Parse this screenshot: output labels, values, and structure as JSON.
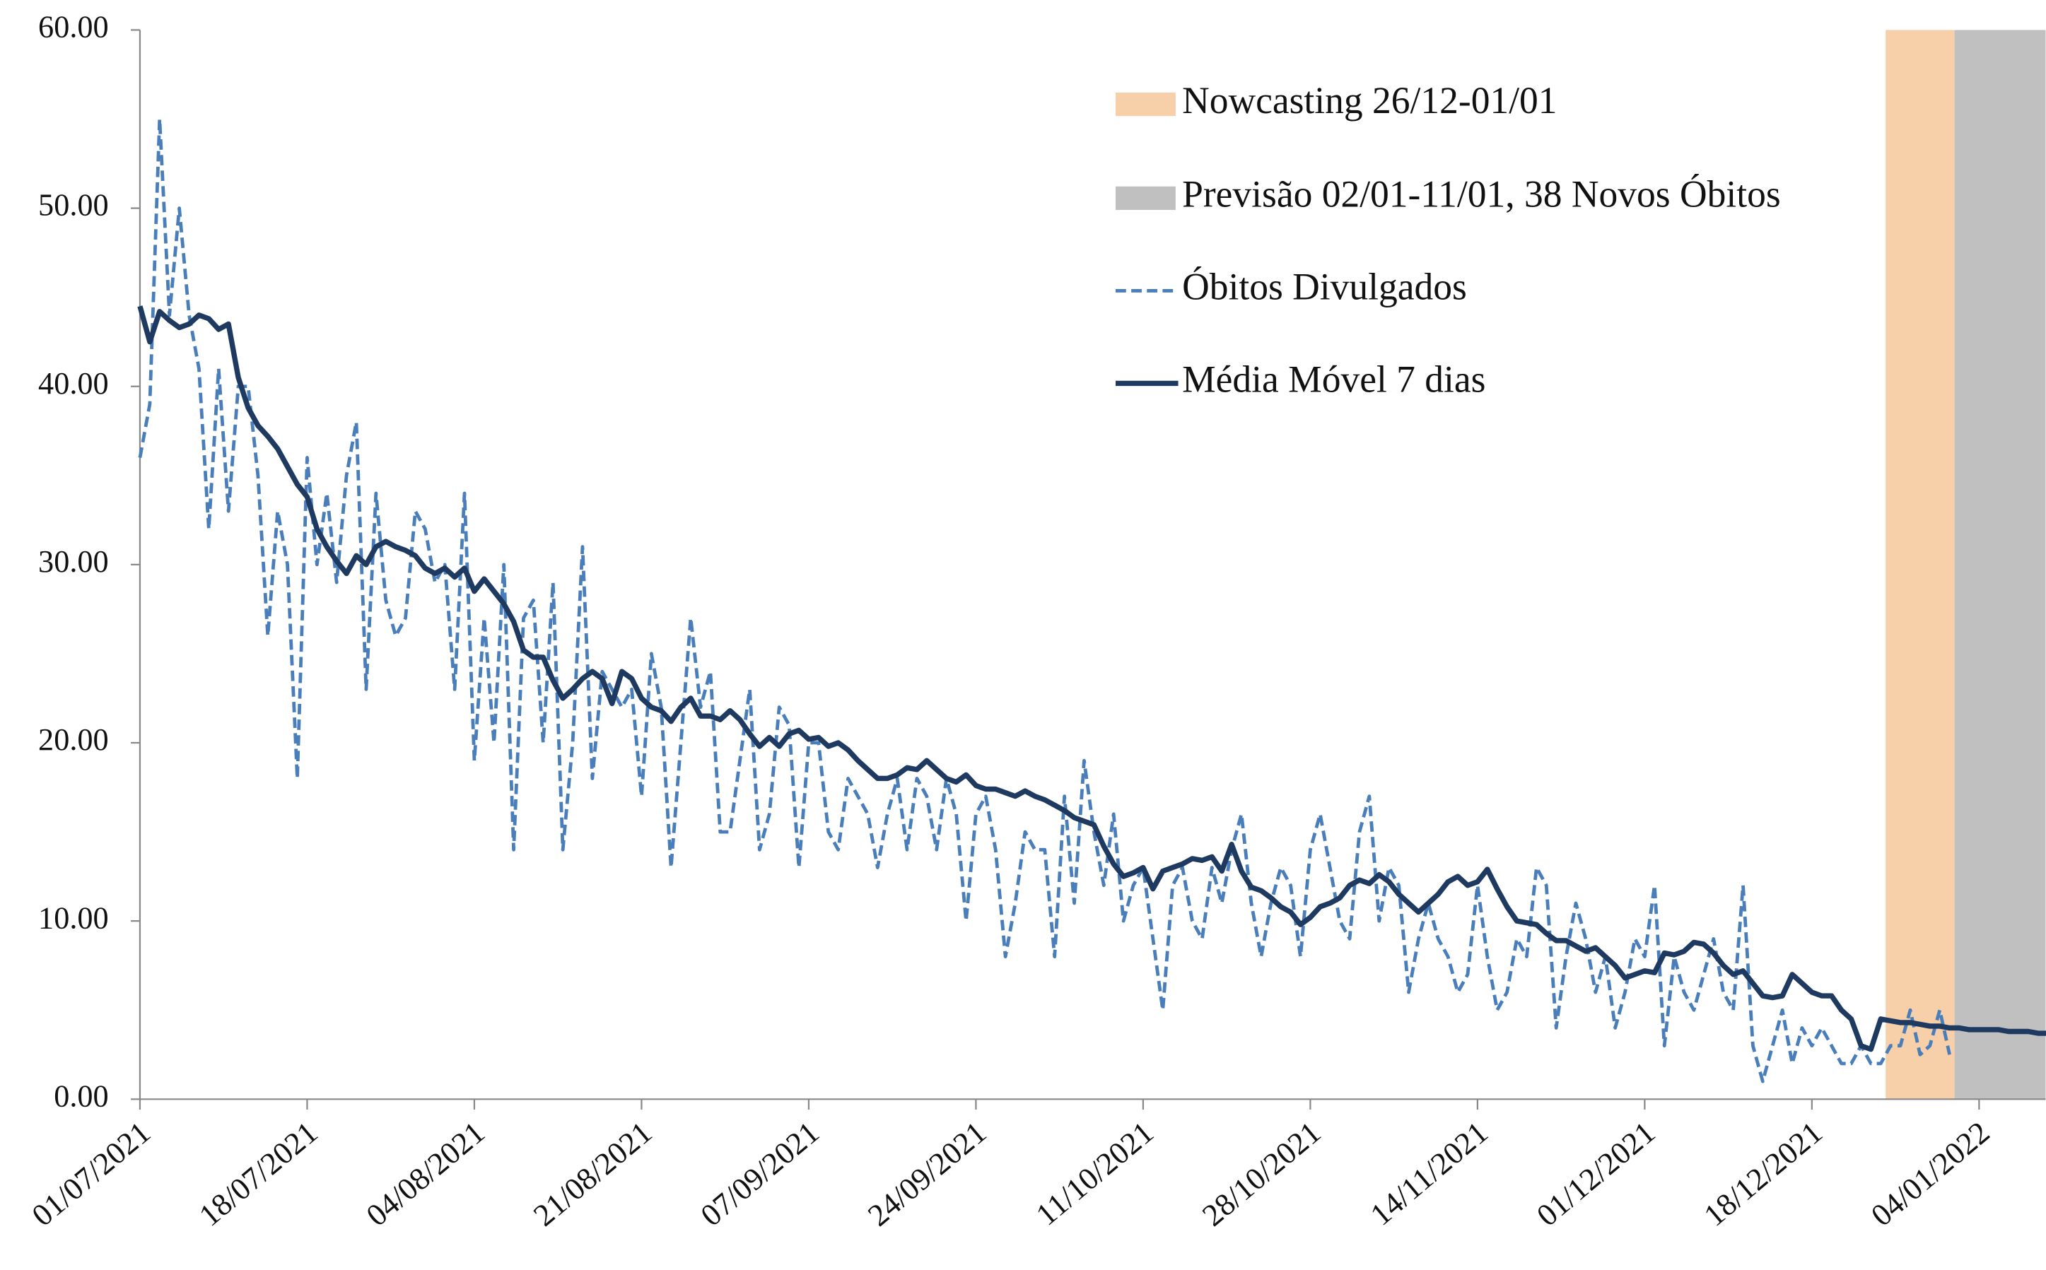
{
  "chart_data": {
    "type": "line",
    "categories": [
      "01/07/2021",
      null,
      null,
      null,
      null,
      null,
      null,
      null,
      null,
      null,
      null,
      null,
      null,
      null,
      null,
      null,
      null,
      "18/07/2021",
      null,
      null,
      null,
      null,
      null,
      null,
      null,
      null,
      null,
      null,
      null,
      null,
      null,
      null,
      null,
      null,
      "04/08/2021",
      null,
      null,
      null,
      null,
      null,
      null,
      null,
      null,
      null,
      null,
      null,
      null,
      null,
      null,
      null,
      null,
      "21/08/2021",
      null,
      null,
      null,
      null,
      null,
      null,
      null,
      null,
      null,
      null,
      null,
      null,
      null,
      null,
      null,
      null,
      "07/09/2021",
      null,
      null,
      null,
      null,
      null,
      null,
      null,
      null,
      null,
      null,
      null,
      null,
      null,
      null,
      null,
      null,
      "24/09/2021",
      null,
      null,
      null,
      null,
      null,
      null,
      null,
      null,
      null,
      null,
      null,
      null,
      null,
      null,
      null,
      null,
      "11/10/2021",
      null,
      null,
      null,
      null,
      null,
      null,
      null,
      null,
      null,
      null,
      null,
      null,
      null,
      null,
      null,
      null,
      "28/10/2021",
      null,
      null,
      null,
      null,
      null,
      null,
      null,
      null,
      null,
      null,
      null,
      null,
      null,
      null,
      null,
      null,
      "14/11/2021",
      null,
      null,
      null,
      null,
      null,
      null,
      null,
      null,
      null,
      null,
      null,
      null,
      null,
      null,
      null,
      null,
      "01/12/2021",
      null,
      null,
      null,
      null,
      null,
      null,
      null,
      null,
      null,
      null,
      null,
      null,
      null,
      null,
      null,
      null,
      "18/12/2021",
      null,
      null,
      null,
      null,
      null,
      null,
      null,
      null,
      null,
      null,
      null,
      null,
      null,
      null,
      null,
      null,
      "04/01/2022",
      null,
      null,
      null,
      null,
      null,
      null,
      null
    ],
    "series": [
      {
        "name": "Óbitos Divulgados",
        "color": "#4a7ebb",
        "dash": true,
        "values": [
          36,
          39,
          55,
          44,
          50,
          44,
          41,
          32,
          41,
          33,
          40,
          40,
          35,
          26,
          33,
          30,
          18,
          36,
          30,
          34,
          29,
          35,
          38,
          23,
          34,
          28,
          26,
          27,
          33,
          32,
          29,
          30,
          23,
          34,
          19,
          27,
          20,
          30,
          14,
          27,
          28,
          20,
          29,
          14,
          20,
          31,
          18,
          24,
          23,
          22,
          23,
          17,
          25,
          22,
          13,
          20,
          27,
          22,
          24,
          15,
          15,
          19,
          23,
          14,
          16,
          22,
          21,
          13,
          20,
          20,
          15,
          14,
          18,
          17,
          16,
          13,
          16,
          18,
          14,
          18,
          17,
          14,
          18,
          16,
          10,
          16,
          17,
          14,
          8,
          11,
          15,
          14,
          14,
          8,
          17,
          11,
          19,
          15,
          12,
          16,
          10,
          12,
          13,
          9,
          5,
          12,
          13,
          10,
          9,
          13,
          11,
          14,
          16,
          11,
          8,
          11,
          13,
          12,
          8,
          14,
          16,
          13,
          10,
          9,
          15,
          17,
          10,
          13,
          12,
          6,
          9,
          11,
          9,
          8,
          6,
          7,
          12,
          8,
          5,
          6,
          9,
          8,
          13,
          12,
          4,
          8,
          11,
          9,
          6,
          8,
          4,
          6,
          9,
          8,
          12,
          3,
          8,
          6,
          5,
          7,
          9,
          6,
          5,
          12,
          3,
          1,
          3,
          5,
          2,
          4,
          3,
          4,
          3,
          2,
          2,
          3,
          2,
          2,
          3,
          3,
          5,
          2.5,
          3,
          5,
          2.5,
          null,
          null,
          null,
          null,
          null,
          null,
          null,
          null,
          null,
          null
        ]
      },
      {
        "name": "Média Móvel 7 dias",
        "color": "#1f3a60",
        "dash": false,
        "values": [
          44.5,
          42.5,
          44.2,
          43.7,
          43.3,
          43.5,
          44,
          43.8,
          43.2,
          43.5,
          40.5,
          38.8,
          37.8,
          37.2,
          36.5,
          35.5,
          34.5,
          33.8,
          32,
          31,
          30.2,
          29.5,
          30.5,
          30,
          31,
          31.3,
          31,
          30.8,
          30.5,
          29.8,
          29.5,
          29.8,
          29.3,
          29.8,
          28.5,
          29.2,
          28.5,
          27.8,
          26.8,
          25.2,
          24.8,
          24.8,
          23.5,
          22.5,
          23,
          23.6,
          24,
          23.6,
          22.2,
          24,
          23.6,
          22.5,
          22,
          21.8,
          21.2,
          22,
          22.5,
          21.5,
          21.5,
          21.3,
          21.8,
          21.3,
          20.5,
          19.8,
          20.3,
          19.8,
          20.5,
          20.7,
          20.2,
          20.3,
          19.8,
          20,
          19.6,
          19,
          18.5,
          18,
          18,
          18.2,
          18.6,
          18.5,
          19,
          18.5,
          18,
          17.8,
          18.2,
          17.6,
          17.4,
          17.4,
          17.2,
          17,
          17.3,
          17,
          16.8,
          16.5,
          16.2,
          15.8,
          15.6,
          15.4,
          14.2,
          13.2,
          12.5,
          12.7,
          13,
          11.8,
          12.8,
          13,
          13.2,
          13.5,
          13.4,
          13.6,
          12.8,
          14.3,
          12.8,
          11.9,
          11.7,
          11.3,
          10.8,
          10.5,
          9.8,
          10.2,
          10.8,
          11,
          11.3,
          12,
          12.3,
          12.1,
          12.6,
          12.2,
          11.5,
          11,
          10.5,
          11,
          11.5,
          12.2,
          12.5,
          12,
          12.2,
          12.9,
          11.8,
          10.8,
          10,
          9.9,
          9.8,
          9.3,
          8.9,
          8.9,
          8.6,
          8.3,
          8.5,
          8,
          7.5,
          6.8,
          7,
          7.2,
          7.1,
          8.2,
          8.1,
          8.3,
          8.8,
          8.7,
          8.2,
          7.5,
          7,
          7.2,
          6.5,
          5.8,
          5.7,
          5.8,
          7,
          6.5,
          6,
          5.8,
          5.8,
          5,
          4.5,
          3,
          2.8,
          4.5,
          4.4,
          4.3,
          4.3,
          4.2,
          4.1,
          4.1,
          4,
          4,
          3.9,
          3.9,
          3.9,
          3.9,
          3.8,
          3.8,
          3.8,
          3.7,
          3.7
        ]
      }
    ],
    "spans": [
      {
        "name": "Nowcasting 26/12-01/01",
        "color": "#f7cfa8",
        "x": [
          178,
          184
        ]
      },
      {
        "name": "Previsão 02/01-11/01,  38 Novos Óbitos",
        "color": "#c0c0c0",
        "x": [
          185,
          194
        ]
      }
    ],
    "ylim": [
      0,
      60
    ],
    "yticks": [
      {
        "value": 0,
        "label": "0.00"
      },
      {
        "value": 10,
        "label": "10.00"
      },
      {
        "value": 20,
        "label": "20.00"
      },
      {
        "value": 30,
        "label": "30.00"
      },
      {
        "value": 40,
        "label": "40.00"
      },
      {
        "value": 50,
        "label": "50.00"
      },
      {
        "value": 60,
        "label": "60.00"
      }
    ],
    "grid": false
  }
}
